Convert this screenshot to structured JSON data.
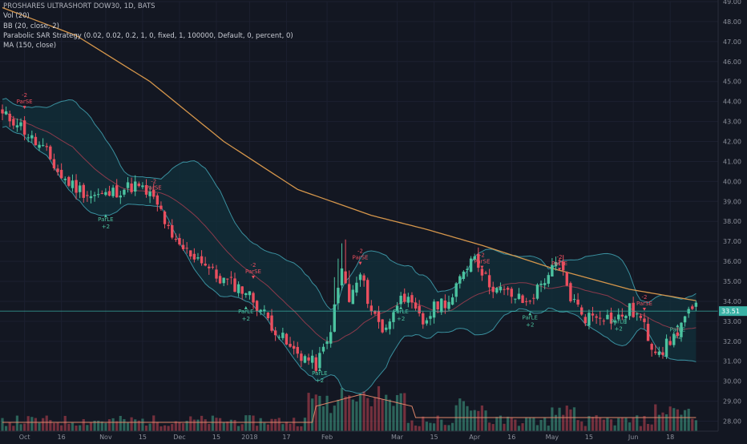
{
  "header": {
    "title": "PROSHARES ULTRASHORT DOW30, 1D, BATS",
    "indicators": [
      "Vol (20)",
      "BB (20, close, 2)",
      "Parabolic SAR Strategy (0.02, 0.02, 0.2, 1, 0, fixed, 1, 100000, Default, 0, percent, 0)",
      "MA (150, close)"
    ]
  },
  "colors": {
    "background": "#131722",
    "up": "#4cc3a0",
    "down": "#ea4f5f",
    "bb_fill": "#12303b",
    "bb_line": "#3a8f9e",
    "bb_basis": "#8a3a4b",
    "ma": "#d5964b",
    "price_line": "#3bb3a6",
    "axis_text": "#8b8f9a",
    "grid": "#1c2030"
  },
  "chart_data": {
    "type": "candlestick",
    "yaxis": {
      "ylim": [
        27.5,
        49.0
      ],
      "ticks": [
        "49.00",
        "48.00",
        "47.00",
        "46.00",
        "45.00",
        "44.00",
        "43.00",
        "42.00",
        "41.00",
        "40.00",
        "39.00",
        "38.00",
        "37.00",
        "36.00",
        "35.00",
        "34.00",
        "33.00",
        "32.00",
        "31.00",
        "30.00",
        "29.00",
        "28.00"
      ],
      "last_price": "33.51"
    },
    "xaxis": {
      "labels": [
        {
          "text": "Oct",
          "day": 6
        },
        {
          "text": "16",
          "day": 16
        },
        {
          "text": "Nov",
          "day": 28
        },
        {
          "text": "15",
          "day": 38
        },
        {
          "text": "Dec",
          "day": 48
        },
        {
          "text": "15",
          "day": 58
        },
        {
          "text": "2018",
          "day": 67
        },
        {
          "text": "17",
          "day": 77
        },
        {
          "text": "Feb",
          "day": 88
        },
        {
          "text": "Mar",
          "day": 107
        },
        {
          "text": "15",
          "day": 117
        },
        {
          "text": "Apr",
          "day": 128
        },
        {
          "text": "16",
          "day": 138
        },
        {
          "text": "May",
          "day": 149
        },
        {
          "text": "15",
          "day": 159
        },
        {
          "text": "Jun",
          "day": 171
        },
        {
          "text": "18",
          "day": 181
        }
      ]
    },
    "sar_labels": [
      {
        "text": "ParSE",
        "sub": "-2",
        "day": 6,
        "price": 43.9,
        "side": "short"
      },
      {
        "text": "ParLE",
        "sub": "+2",
        "day": 28,
        "price": 38.0,
        "side": "long"
      },
      {
        "text": "ParSE",
        "sub": "-2",
        "day": 41,
        "price": 39.6,
        "side": "short"
      },
      {
        "text": "ParLE",
        "sub": "+2",
        "day": 66,
        "price": 33.4,
        "side": "long"
      },
      {
        "text": "ParSE",
        "sub": "-2",
        "day": 68,
        "price": 35.4,
        "side": "short"
      },
      {
        "text": "ParLE",
        "sub": "+2",
        "day": 86,
        "price": 30.3,
        "side": "long"
      },
      {
        "text": "ParSE",
        "sub": "-2",
        "day": 97,
        "price": 36.1,
        "side": "short"
      },
      {
        "text": "ParLE",
        "sub": "+2",
        "day": 108,
        "price": 33.4,
        "side": "long"
      },
      {
        "text": "ParSE",
        "sub": "-2",
        "day": 130,
        "price": 35.9,
        "side": "short"
      },
      {
        "text": "ParLE",
        "sub": "+2",
        "day": 143,
        "price": 33.1,
        "side": "long"
      },
      {
        "text": "ParSE",
        "sub": "-2",
        "day": 151,
        "price": 35.8,
        "side": "short"
      },
      {
        "text": "ParLE",
        "sub": "+2",
        "day": 167,
        "price": 32.9,
        "side": "long"
      },
      {
        "text": "ParSE",
        "sub": "-2",
        "day": 174,
        "price": 33.8,
        "side": "short"
      },
      {
        "text": "ParLE",
        "sub": "+2",
        "day": 183,
        "price": 32.5,
        "side": "long"
      }
    ]
  }
}
